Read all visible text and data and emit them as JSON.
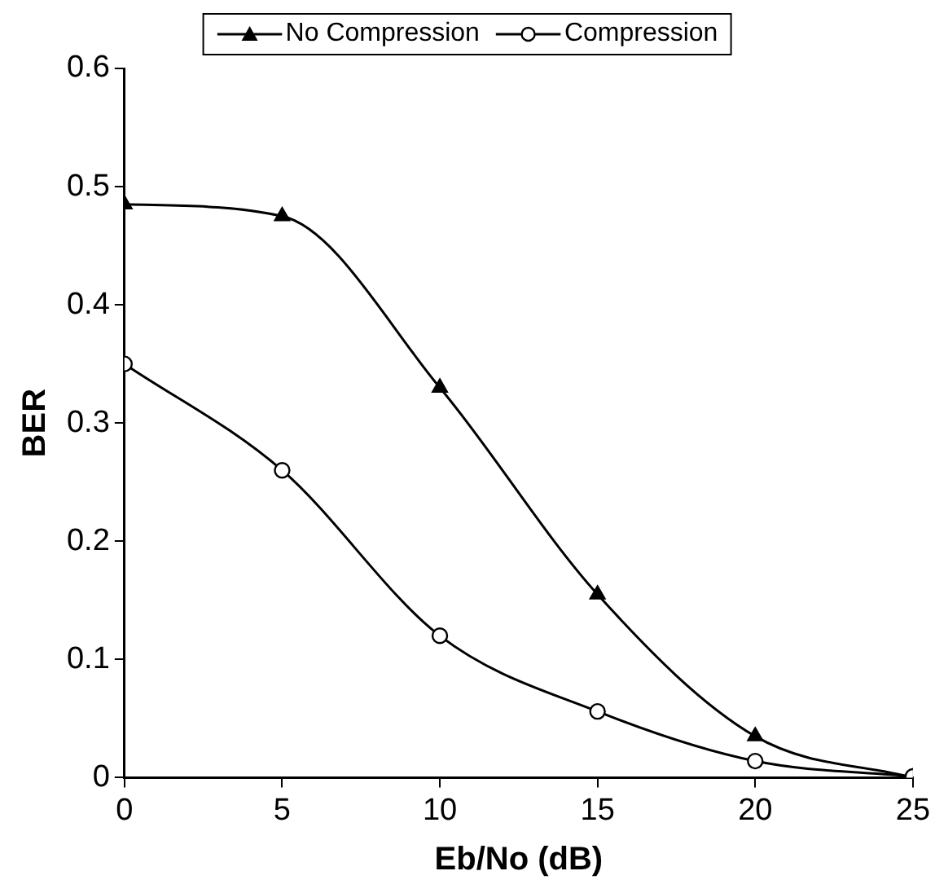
{
  "chart_data": {
    "type": "line",
    "xlabel": "Eb/No (dB)",
    "ylabel": "BER",
    "x": [
      0,
      5,
      10,
      15,
      20,
      25
    ],
    "series": [
      {
        "name": "No Compression",
        "color": "#000000",
        "marker": "triangle",
        "values": [
          0.485,
          0.475,
          0.33,
          0.155,
          0.035,
          0
        ]
      },
      {
        "name": "Compression",
        "color": "#000000",
        "marker": "circle",
        "values": [
          0.35,
          0.26,
          0.12,
          0.056,
          0.014,
          0.001
        ]
      }
    ],
    "xlim": [
      0,
      25
    ],
    "xticks": [
      0,
      5,
      10,
      15,
      20,
      25
    ],
    "ylim": [
      0,
      0.6
    ],
    "yticks": [
      0,
      0.1,
      0.2,
      0.3,
      0.4,
      0.5,
      0.6
    ],
    "grid": false,
    "legend": "top",
    "line_style": "solid"
  }
}
